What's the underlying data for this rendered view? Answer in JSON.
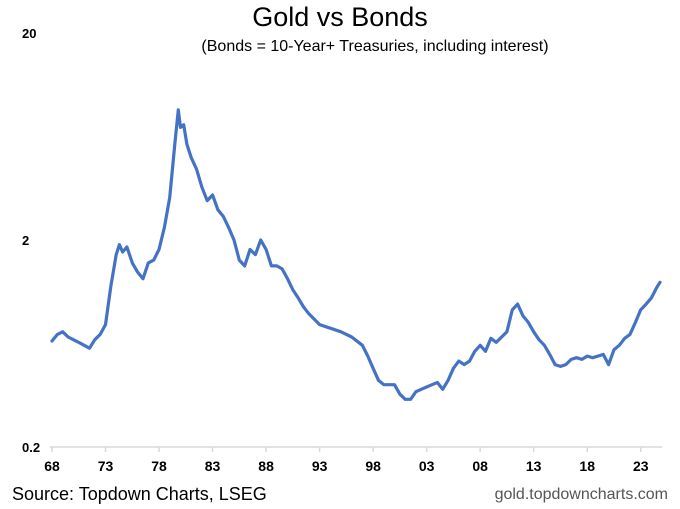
{
  "chart_data": {
    "type": "line",
    "title": "Gold vs Bonds",
    "subtitle": "(Bonds = 10-Year+ Treasuries, including interest)",
    "xlabel": "",
    "ylabel": "",
    "yscale": "log",
    "ylim": [
      0.2,
      20
    ],
    "xlim": [
      1968,
      2024.8
    ],
    "y_ticks": [
      20,
      2,
      0.2
    ],
    "y_tick_labels": [
      "20",
      "2",
      "0.2"
    ],
    "x_ticks": [
      1968,
      1973,
      1978,
      1983,
      1988,
      1993,
      1998,
      2003,
      2008,
      2013,
      2018,
      2023
    ],
    "x_tick_labels": [
      "68",
      "73",
      "78",
      "83",
      "88",
      "93",
      "98",
      "03",
      "08",
      "13",
      "18",
      "23"
    ],
    "grid": false,
    "legend": "none",
    "series": [
      {
        "color": "#4472C4",
        "x": [
          1968.0,
          1968.5,
          1969.0,
          1969.5,
          1970.0,
          1970.5,
          1971.0,
          1971.5,
          1972.0,
          1972.5,
          1973.0,
          1973.5,
          1974.0,
          1974.3,
          1974.6,
          1975.0,
          1975.5,
          1976.0,
          1976.5,
          1977.0,
          1977.5,
          1978.0,
          1978.5,
          1979.0,
          1979.5,
          1979.8,
          1980.0,
          1980.3,
          1980.6,
          1981.0,
          1981.5,
          1982.0,
          1982.5,
          1983.0,
          1983.5,
          1984.0,
          1984.5,
          1985.0,
          1985.5,
          1986.0,
          1986.5,
          1987.0,
          1987.5,
          1988.0,
          1988.5,
          1989.0,
          1989.5,
          1990.0,
          1990.5,
          1991.0,
          1991.5,
          1992.0,
          1993.0,
          1994.0,
          1995.0,
          1996.0,
          1997.0,
          1997.5,
          1998.0,
          1998.5,
          1999.0,
          1999.5,
          2000.0,
          2000.5,
          2001.0,
          2001.5,
          2002.0,
          2002.5,
          2003.0,
          2003.5,
          2004.0,
          2004.5,
          2005.0,
          2005.5,
          2006.0,
          2006.5,
          2007.0,
          2007.5,
          2008.0,
          2008.5,
          2009.0,
          2009.5,
          2010.0,
          2010.5,
          2011.0,
          2011.5,
          2012.0,
          2012.5,
          2013.0,
          2013.5,
          2014.0,
          2014.5,
          2015.0,
          2015.5,
          2016.0,
          2016.5,
          2017.0,
          2017.5,
          2018.0,
          2018.5,
          2019.0,
          2019.5,
          2020.0,
          2020.5,
          2021.0,
          2021.5,
          2022.0,
          2022.5,
          2023.0,
          2023.5,
          2024.0,
          2024.5,
          2024.8
        ],
        "values": [
          0.65,
          0.7,
          0.72,
          0.68,
          0.66,
          0.64,
          0.62,
          0.6,
          0.66,
          0.7,
          0.78,
          1.2,
          1.7,
          1.9,
          1.75,
          1.85,
          1.55,
          1.4,
          1.3,
          1.55,
          1.6,
          1.8,
          2.3,
          3.2,
          6.0,
          8.5,
          7.0,
          7.2,
          5.8,
          5.0,
          4.4,
          3.6,
          3.1,
          3.3,
          2.8,
          2.6,
          2.3,
          2.0,
          1.6,
          1.5,
          1.8,
          1.7,
          2.0,
          1.8,
          1.5,
          1.5,
          1.45,
          1.3,
          1.15,
          1.05,
          0.95,
          0.88,
          0.78,
          0.75,
          0.72,
          0.68,
          0.62,
          0.55,
          0.48,
          0.42,
          0.4,
          0.4,
          0.4,
          0.36,
          0.34,
          0.34,
          0.37,
          0.38,
          0.39,
          0.4,
          0.41,
          0.38,
          0.42,
          0.48,
          0.52,
          0.5,
          0.52,
          0.58,
          0.62,
          0.58,
          0.67,
          0.64,
          0.68,
          0.72,
          0.92,
          0.98,
          0.86,
          0.8,
          0.72,
          0.66,
          0.62,
          0.56,
          0.5,
          0.49,
          0.5,
          0.53,
          0.54,
          0.53,
          0.55,
          0.54,
          0.55,
          0.56,
          0.5,
          0.59,
          0.62,
          0.67,
          0.7,
          0.8,
          0.92,
          0.98,
          1.05,
          1.18,
          1.25
        ]
      }
    ]
  },
  "footer": {
    "source": "Source: Topdown Charts, LSEG",
    "website": "gold.topdowncharts.com"
  }
}
